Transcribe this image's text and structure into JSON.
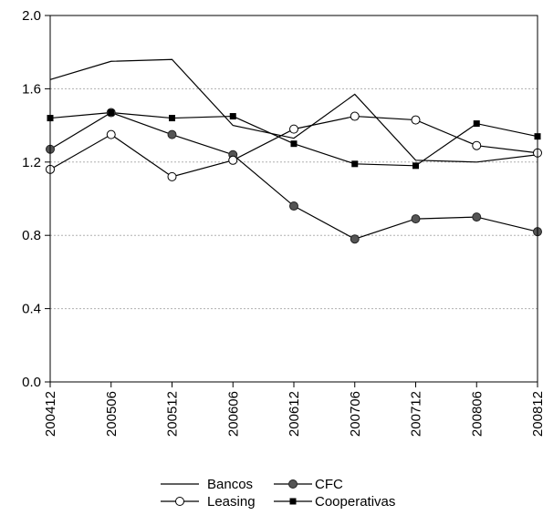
{
  "chart_data": {
    "type": "line",
    "categories": [
      "200412",
      "200506",
      "200512",
      "200606",
      "200612",
      "200706",
      "200712",
      "200806",
      "200812"
    ],
    "ylim": [
      0.0,
      2.0
    ],
    "yticks": [
      "0.0",
      "0.4",
      "0.8",
      "1.2",
      "1.6",
      "2.0"
    ],
    "grid": "horizontal dotted",
    "legend_position": "bottom",
    "series": [
      {
        "name": "Bancos",
        "marker": "none",
        "values": [
          1.65,
          1.75,
          1.76,
          1.4,
          1.33,
          1.57,
          1.21,
          1.2,
          1.24
        ]
      },
      {
        "name": "CFC",
        "marker": "filled-circle",
        "values": [
          1.27,
          1.47,
          1.35,
          1.24,
          0.96,
          0.78,
          0.89,
          0.9,
          0.82
        ]
      },
      {
        "name": "Leasing",
        "marker": "open-circle",
        "values": [
          1.16,
          1.35,
          1.12,
          1.21,
          1.38,
          1.45,
          1.43,
          1.29,
          1.25
        ]
      },
      {
        "name": "Cooperativas",
        "marker": "filled-square",
        "values": [
          1.44,
          1.47,
          1.44,
          1.45,
          1.3,
          1.19,
          1.18,
          1.41,
          1.34
        ]
      }
    ]
  }
}
